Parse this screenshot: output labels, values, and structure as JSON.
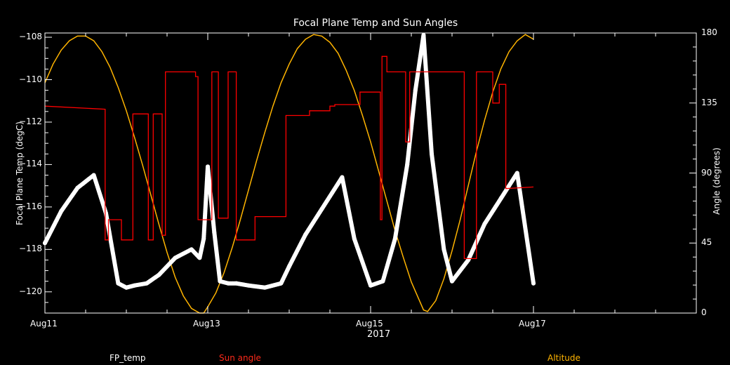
{
  "chart_data": {
    "type": "line",
    "title": "Focal Plane Temp and Sun Angles",
    "xlabel": "2017",
    "ylabel": "Focal Plane Temp (degC)",
    "y2label": "Angle (degrees)",
    "x_ticks": [
      "Aug11",
      "Aug13",
      "Aug15",
      "Aug17"
    ],
    "x_range_days": [
      11,
      19
    ],
    "y_ticks": [
      "-108",
      "-110",
      "-112",
      "-114",
      "-116",
      "-118",
      "-120"
    ],
    "ylim": [
      -121,
      -107.8
    ],
    "y2_ticks": [
      "180",
      "135",
      "90",
      "45",
      "0"
    ],
    "y2lim": [
      0,
      180
    ],
    "legend": [
      "FP_temp",
      "Sun angle",
      "Altitude"
    ],
    "colors": {
      "fp_temp": "#ffffff",
      "sun_angle": "#ff0000",
      "altitude": "#ffb400",
      "axes": "#ffffff",
      "background": "#000000"
    },
    "series": [
      {
        "name": "FP_temp",
        "axis": "left",
        "x": [
          11.0,
          11.2,
          11.4,
          11.6,
          11.75,
          11.9,
          12.0,
          12.1,
          12.25,
          12.4,
          12.6,
          12.8,
          12.9,
          12.95,
          13.0,
          13.08,
          13.15,
          13.25,
          13.35,
          13.5,
          13.7,
          13.9,
          14.0,
          14.2,
          14.4,
          14.6,
          14.65,
          14.8,
          15.0,
          15.15,
          15.3,
          15.45,
          15.55,
          15.65,
          15.75,
          15.9,
          16.0,
          16.2,
          16.4,
          16.6,
          16.8,
          17.0
        ],
        "y": [
          -117.7,
          -116.2,
          -115.1,
          -114.5,
          -116.3,
          -119.6,
          -119.8,
          -119.7,
          -119.6,
          -119.2,
          -118.4,
          -118.0,
          -118.4,
          -117.5,
          -114.1,
          -117.2,
          -119.5,
          -119.6,
          -119.6,
          -119.7,
          -119.8,
          -119.6,
          -118.8,
          -117.3,
          -116.1,
          -114.9,
          -114.6,
          -117.5,
          -119.7,
          -119.5,
          -117.5,
          -114.0,
          -110.5,
          -107.9,
          -113.5,
          -118.0,
          -119.5,
          -118.5,
          -116.8,
          -115.6,
          -114.4,
          -119.6
        ]
      },
      {
        "name": "Sun angle",
        "axis": "right",
        "x": [
          11.0,
          11.74,
          11.74,
          11.78,
          11.78,
          11.94,
          11.94,
          12.08,
          12.08,
          12.27,
          12.27,
          12.33,
          12.33,
          12.44,
          12.44,
          12.48,
          12.48,
          12.85,
          12.85,
          12.88,
          12.88,
          13.05,
          13.05,
          13.13,
          13.13,
          13.25,
          13.25,
          13.35,
          13.35,
          13.58,
          13.58,
          13.96,
          13.96,
          14.25,
          14.25,
          14.5,
          14.5,
          14.56,
          14.56,
          14.87,
          14.87,
          15.12,
          15.12,
          15.14,
          15.14,
          15.2,
          15.2,
          15.43,
          15.43,
          15.48,
          15.48,
          16.15,
          16.15,
          16.3,
          16.3,
          16.5,
          16.5,
          16.58,
          16.58,
          16.66,
          16.66,
          17.0
        ],
        "y": [
          133,
          131,
          47,
          47,
          60,
          60,
          47,
          47,
          128,
          128,
          47,
          47,
          128,
          128,
          50,
          50,
          155,
          155,
          152,
          152,
          60,
          60,
          155,
          155,
          61,
          61,
          155,
          155,
          47,
          47,
          62,
          62,
          127,
          127,
          130,
          130,
          133,
          133,
          134,
          134,
          142,
          142,
          60,
          60,
          165,
          165,
          155,
          155,
          110,
          110,
          155,
          155,
          35,
          35,
          155,
          155,
          135,
          135,
          147,
          147,
          80,
          81
        ]
      },
      {
        "name": "Altitude",
        "axis": "right",
        "x": [
          11.0,
          11.1,
          11.2,
          11.3,
          11.4,
          11.5,
          11.6,
          11.7,
          11.8,
          11.9,
          12.0,
          12.1,
          12.2,
          12.3,
          12.4,
          12.5,
          12.6,
          12.7,
          12.8,
          12.9,
          12.95,
          13.0,
          13.1,
          13.2,
          13.3,
          13.4,
          13.5,
          13.6,
          13.7,
          13.8,
          13.9,
          14.0,
          14.1,
          14.2,
          14.3,
          14.4,
          14.5,
          14.6,
          14.7,
          14.8,
          14.9,
          15.0,
          15.1,
          15.2,
          15.3,
          15.4,
          15.5,
          15.6,
          15.65,
          15.7,
          15.8,
          15.9,
          16.0,
          16.1,
          16.2,
          16.3,
          16.4,
          16.5,
          16.6,
          16.7,
          16.8,
          16.9,
          17.0
        ],
        "y": [
          148,
          160,
          169,
          175,
          178,
          178,
          175,
          168,
          158,
          145,
          130,
          113,
          95,
          76,
          57,
          39,
          23,
          11,
          3,
          0,
          0,
          4,
          13,
          26,
          42,
          60,
          79,
          98,
          116,
          133,
          148,
          160,
          170,
          176,
          179,
          178,
          174,
          167,
          156,
          143,
          127,
          110,
          91,
          72,
          53,
          36,
          20,
          8,
          2,
          1,
          8,
          22,
          40,
          60,
          82,
          104,
          124,
          142,
          157,
          168,
          175,
          179,
          176
        ]
      }
    ]
  }
}
